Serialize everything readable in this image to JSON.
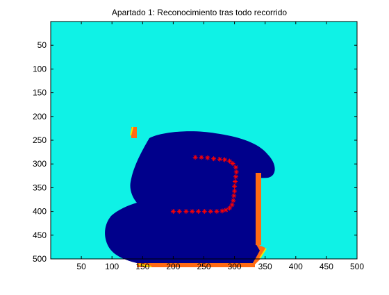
{
  "figure": {
    "title": "Apartado 1: Reconocimiento tras todo recorrido"
  },
  "axes": {
    "x_ticks": [
      "50",
      "100",
      "150",
      "200",
      "250",
      "300",
      "350",
      "400",
      "450",
      "500"
    ],
    "y_ticks": [
      "50",
      "100",
      "150",
      "200",
      "250",
      "300",
      "350",
      "400",
      "450",
      "500"
    ]
  },
  "colors": {
    "background": "#0ff2e6",
    "explored_region": "#00008b",
    "obstacle_boundary": "#ff6a13",
    "boundary_highlight": "#f2e600",
    "path_marker": "#ff0000"
  },
  "chart_data": {
    "type": "image-map",
    "xlim": [
      0,
      500
    ],
    "ylim": [
      0,
      500
    ],
    "y_axis_direction": "down",
    "grid": false,
    "path": {
      "marker": "*",
      "x": [
        236,
        246,
        256,
        266,
        276,
        284,
        292,
        297,
        302,
        303,
        302,
        301,
        300,
        300,
        299,
        298,
        296,
        292,
        286,
        280,
        271,
        261,
        251,
        241,
        231,
        221,
        210,
        200
      ],
      "y": [
        286,
        286,
        287,
        289,
        290,
        291,
        294,
        299,
        307,
        317,
        327,
        337,
        347,
        357,
        367,
        377,
        386,
        393,
        397,
        399,
        400,
        400,
        400,
        400,
        400,
        400,
        400,
        400
      ]
    }
  }
}
